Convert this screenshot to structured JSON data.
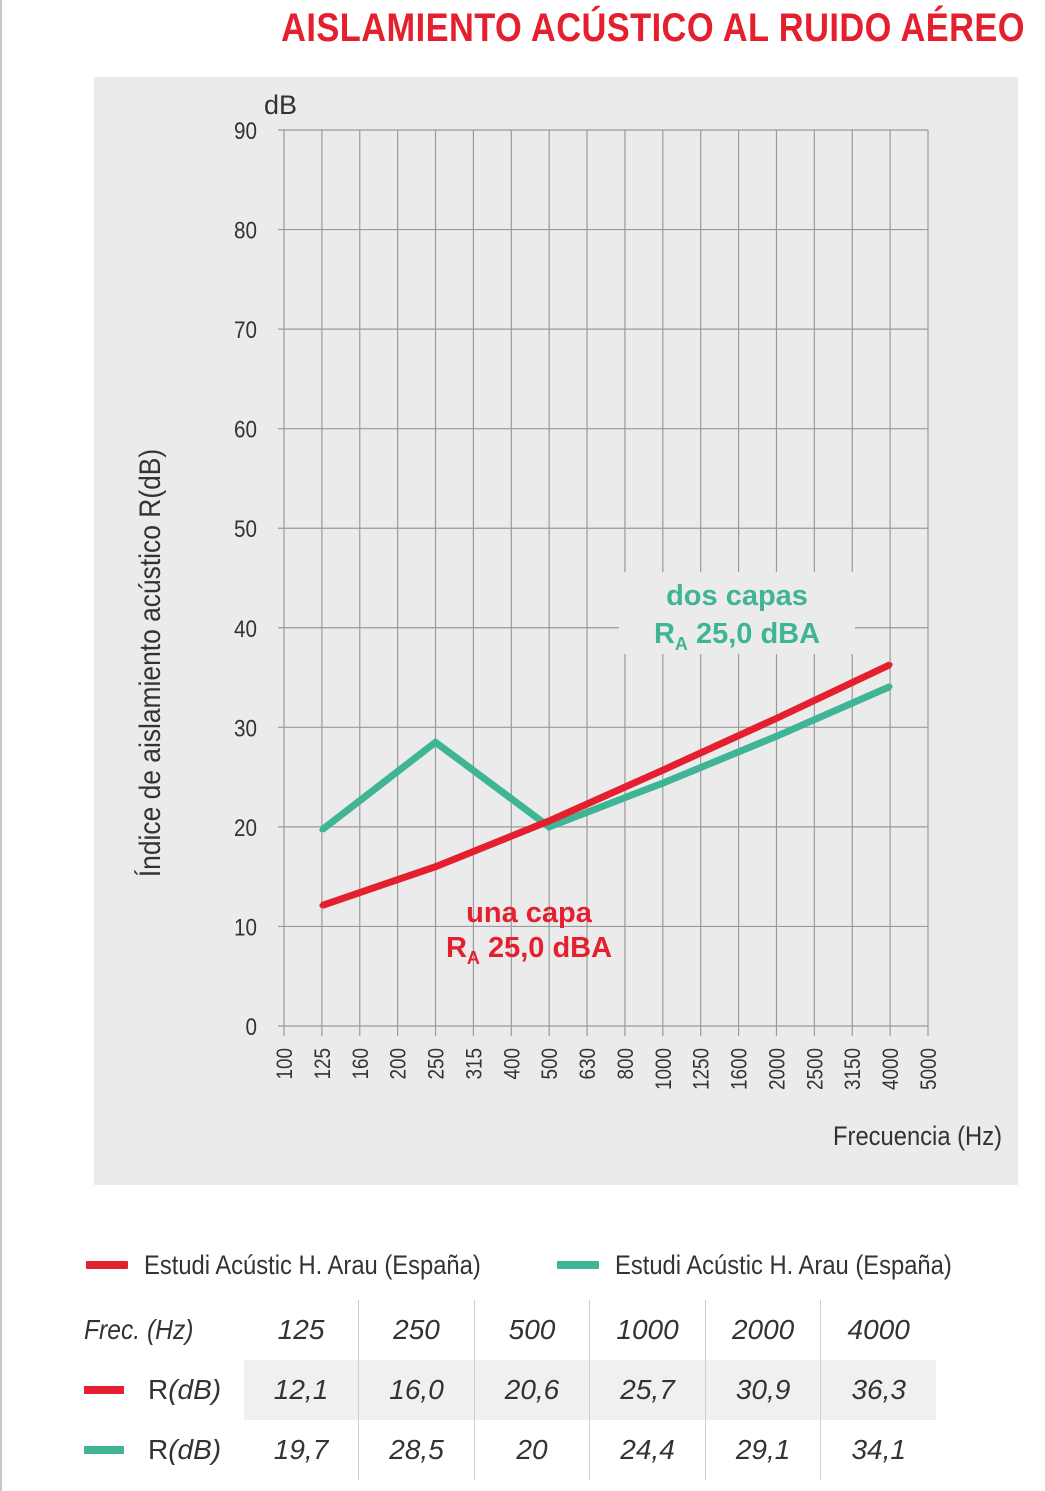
{
  "title": "AISLAMIENTO ACÚSTICO AL RUIDO AÉREO",
  "colors": {
    "red": "#e4202f",
    "teal": "#3fb596",
    "panel": "#ebebeb",
    "grid": "#9a9a9a"
  },
  "chart_data": {
    "type": "line",
    "y_unit_label": "dB",
    "ylabel": "Índice de aislamiento acústico R(dB)",
    "xlabel": "Frecuencia (Hz)",
    "ylim": [
      0,
      90
    ],
    "y_ticks": [
      "0",
      "10",
      "20",
      "30",
      "40",
      "50",
      "60",
      "70",
      "80",
      "90"
    ],
    "x_ticks": [
      "100",
      "125",
      "160",
      "200",
      "250",
      "315",
      "400",
      "500",
      "630",
      "800",
      "1000",
      "1250",
      "1600",
      "2000",
      "2500",
      "3150",
      "4000",
      "5000"
    ],
    "grid": true,
    "series": [
      {
        "key": "una",
        "color": "#e4202f",
        "x": [
          "125",
          "250",
          "500",
          "1000",
          "2000",
          "4000"
        ],
        "values": [
          12.1,
          16.0,
          20.6,
          25.7,
          30.9,
          36.3
        ]
      },
      {
        "key": "dos",
        "color": "#3fb596",
        "x": [
          "125",
          "250",
          "500",
          "1000",
          "2000",
          "4000"
        ],
        "values": [
          19.7,
          28.5,
          20,
          24.4,
          29.1,
          34.1
        ]
      }
    ],
    "annotations": [
      {
        "series": "dos",
        "line1": "dos capas",
        "r": "R",
        "sub": "A",
        "value": "25,0 dBA"
      },
      {
        "series": "una",
        "line1": "una capa",
        "r": "R",
        "sub": "A",
        "value": "25,0 dBA"
      }
    ]
  },
  "legend": [
    {
      "label": "Estudi Acústic H. Arau (España)",
      "color": "#e4202f"
    },
    {
      "label": "Estudi Acústic H. Arau (España)",
      "color": "#3fb596"
    }
  ],
  "table": {
    "header_label": "Frec. (Hz)",
    "frequencies": [
      "125",
      "250",
      "500",
      "1000",
      "2000",
      "4000"
    ],
    "rows": [
      {
        "label_main": "R",
        "label_unit": "(dB)",
        "color": "#e4202f",
        "values": [
          "12,1",
          "16,0",
          "20,6",
          "25,7",
          "30,9",
          "36,3"
        ]
      },
      {
        "label_main": "R",
        "label_unit": "(dB)",
        "color": "#3fb596",
        "values": [
          "19,7",
          "28,5",
          "20",
          "24,4",
          "29,1",
          "34,1"
        ]
      }
    ]
  }
}
